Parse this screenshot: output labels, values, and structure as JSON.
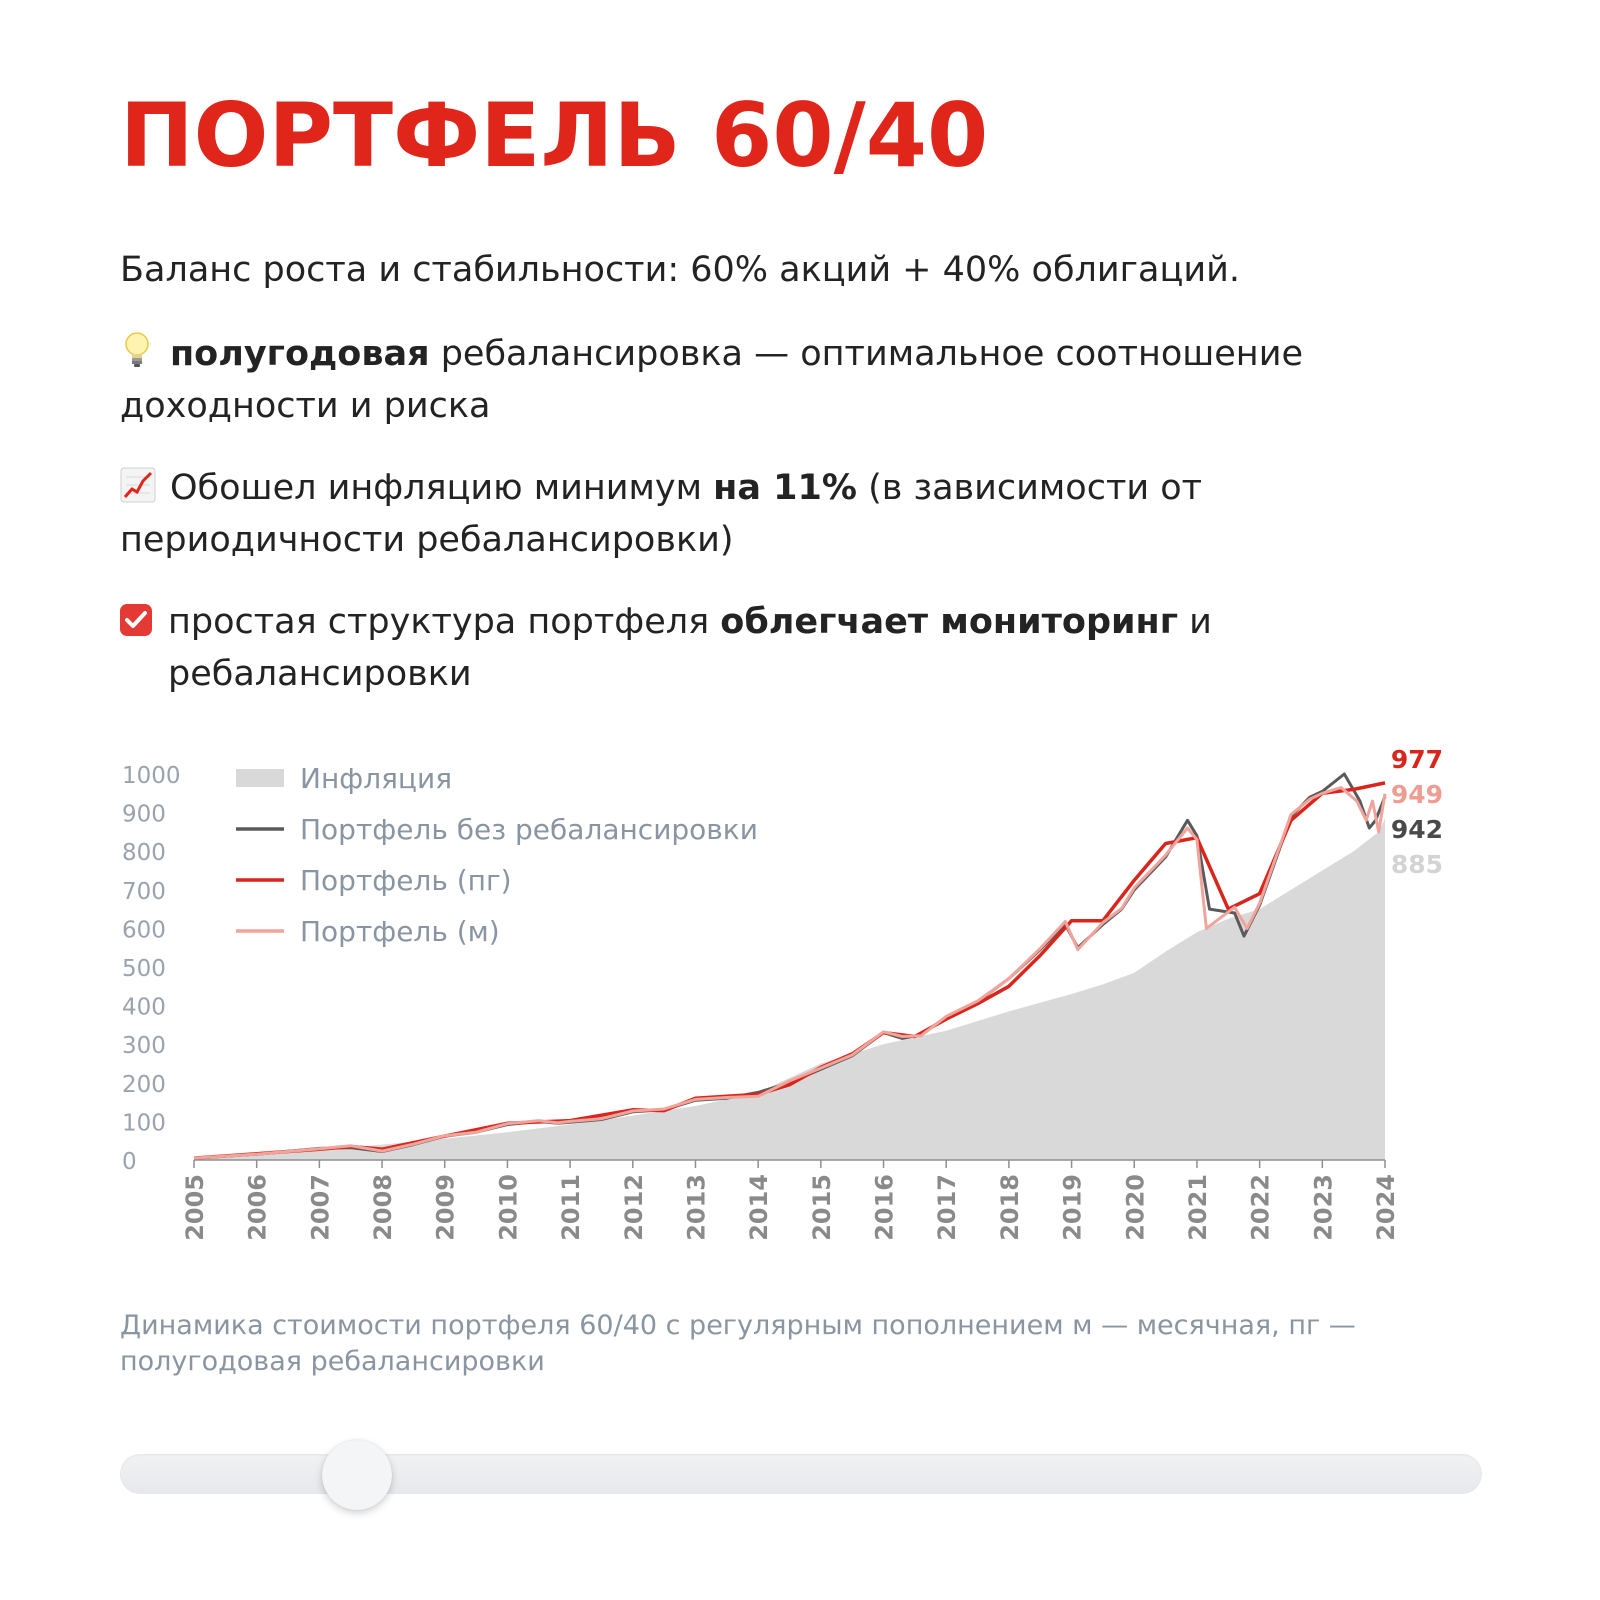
{
  "header": {
    "title": "ПОРТФЕЛЬ 60/40"
  },
  "intro": {
    "text": "Баланс роста и стабильности: 60% акций + 40% облигаций."
  },
  "bullets": [
    {
      "icon": "lightbulb-icon",
      "bold": "полугодовая",
      "rest": " ребалансировка — оптимальное соотношение доходности и риска"
    },
    {
      "icon": "chart-increasing-icon",
      "pre": "Обошел инфляцию минимум ",
      "bold": "на 11%",
      "rest": " (в зависимости от периодичности ребалансировки)"
    },
    {
      "icon": "checkbox-icon",
      "pre": "простая структура портфеля ",
      "bold": "облегчает мониторинг",
      "rest": " и ребалансировки"
    }
  ],
  "chart_data": {
    "type": "line",
    "y_ticks": [
      "0",
      "100",
      "200",
      "300",
      "400",
      "500",
      "600",
      "700",
      "800",
      "900",
      "1000"
    ],
    "x_ticks": [
      "2005",
      "2006",
      "2007",
      "2008",
      "2009",
      "2010",
      "2011",
      "2012",
      "2013",
      "2014",
      "2015",
      "2016",
      "2017",
      "2018",
      "2019",
      "2020",
      "2021",
      "2022",
      "2023",
      "2024"
    ],
    "ylim": [
      0,
      1000
    ],
    "xlim": [
      2005,
      2024
    ],
    "grid": false,
    "legend_position": "top-left",
    "series": [
      {
        "name": "Инфляция",
        "kind": "area",
        "color": "#d9d9d9",
        "end_label": "885",
        "points": [
          [
            2005,
            5
          ],
          [
            2006,
            15
          ],
          [
            2007,
            26
          ],
          [
            2008,
            40
          ],
          [
            2009,
            55
          ],
          [
            2010,
            72
          ],
          [
            2011,
            92
          ],
          [
            2012,
            115
          ],
          [
            2013,
            140
          ],
          [
            2014,
            175
          ],
          [
            2015,
            250
          ],
          [
            2016,
            300
          ],
          [
            2017,
            335
          ],
          [
            2018,
            385
          ],
          [
            2019,
            430
          ],
          [
            2019.5,
            455
          ],
          [
            2020,
            485
          ],
          [
            2020.5,
            540
          ],
          [
            2021,
            590
          ],
          [
            2021.5,
            625
          ],
          [
            2022,
            650
          ],
          [
            2022.5,
            700
          ],
          [
            2023,
            750
          ],
          [
            2023.5,
            800
          ],
          [
            2023.9,
            850
          ],
          [
            2024,
            885
          ]
        ]
      },
      {
        "name": "Портфель без ребалансировки",
        "kind": "line",
        "color": "#5a5a5a",
        "end_label": "942",
        "points": [
          [
            2005,
            5
          ],
          [
            2006,
            15
          ],
          [
            2007,
            30
          ],
          [
            2007.5,
            32
          ],
          [
            2008,
            22
          ],
          [
            2008.5,
            40
          ],
          [
            2009,
            62
          ],
          [
            2009.5,
            72
          ],
          [
            2010,
            92
          ],
          [
            2010.5,
            100
          ],
          [
            2010.8,
            95
          ],
          [
            2011,
            98
          ],
          [
            2011.5,
            105
          ],
          [
            2012,
            125
          ],
          [
            2012.5,
            130
          ],
          [
            2013,
            155
          ],
          [
            2013.5,
            160
          ],
          [
            2014,
            175
          ],
          [
            2014.5,
            200
          ],
          [
            2015,
            235
          ],
          [
            2015.5,
            270
          ],
          [
            2016,
            330
          ],
          [
            2016.3,
            315
          ],
          [
            2016.6,
            325
          ],
          [
            2017,
            370
          ],
          [
            2017.5,
            410
          ],
          [
            2018,
            470
          ],
          [
            2018.5,
            545
          ],
          [
            2018.9,
            610
          ],
          [
            2019.1,
            550
          ],
          [
            2019.5,
            610
          ],
          [
            2019.8,
            650
          ],
          [
            2020,
            700
          ],
          [
            2020.5,
            785
          ],
          [
            2020.85,
            880
          ],
          [
            2021.0,
            840
          ],
          [
            2021.2,
            650
          ],
          [
            2021.6,
            640
          ],
          [
            2021.75,
            580
          ],
          [
            2022,
            660
          ],
          [
            2022.5,
            890
          ],
          [
            2022.8,
            940
          ],
          [
            2023.0,
            955
          ],
          [
            2023.35,
            1000
          ],
          [
            2023.6,
            930
          ],
          [
            2023.75,
            860
          ],
          [
            2023.85,
            880
          ],
          [
            2024,
            942
          ]
        ]
      },
      {
        "name": "Портфель (пг)",
        "kind": "line",
        "color": "#d9251b",
        "end_label": "977",
        "points": [
          [
            2005,
            5
          ],
          [
            2006,
            16
          ],
          [
            2007,
            28
          ],
          [
            2007.5,
            35
          ],
          [
            2008,
            28
          ],
          [
            2009,
            62
          ],
          [
            2010,
            95
          ],
          [
            2011,
            102
          ],
          [
            2012,
            130
          ],
          [
            2012.5,
            128
          ],
          [
            2013,
            160
          ],
          [
            2013.5,
            165
          ],
          [
            2014,
            170
          ],
          [
            2014.5,
            195
          ],
          [
            2015,
            240
          ],
          [
            2015.5,
            275
          ],
          [
            2016,
            330
          ],
          [
            2016.5,
            320
          ],
          [
            2017,
            365
          ],
          [
            2017.5,
            405
          ],
          [
            2018,
            450
          ],
          [
            2018.5,
            530
          ],
          [
            2019,
            620
          ],
          [
            2019.5,
            620
          ],
          [
            2020,
            725
          ],
          [
            2020.5,
            820
          ],
          [
            2021,
            835
          ],
          [
            2021.5,
            650
          ],
          [
            2022,
            690
          ],
          [
            2022.5,
            880
          ],
          [
            2023,
            950
          ],
          [
            2023.5,
            960
          ],
          [
            2024,
            977
          ]
        ]
      },
      {
        "name": "Портфель (м)",
        "kind": "line",
        "color": "#f0a49c",
        "end_label": "949",
        "points": [
          [
            2005,
            5
          ],
          [
            2006,
            15
          ],
          [
            2007,
            29
          ],
          [
            2007.5,
            37
          ],
          [
            2008,
            23
          ],
          [
            2008.5,
            41
          ],
          [
            2009,
            63
          ],
          [
            2009.5,
            72
          ],
          [
            2010,
            94
          ],
          [
            2010.5,
            102
          ],
          [
            2010.8,
            96
          ],
          [
            2011,
            100
          ],
          [
            2011.5,
            107
          ],
          [
            2012,
            127
          ],
          [
            2012.5,
            132
          ],
          [
            2013,
            157
          ],
          [
            2013.5,
            162
          ],
          [
            2014,
            165
          ],
          [
            2014.5,
            205
          ],
          [
            2015,
            238
          ],
          [
            2015.5,
            272
          ],
          [
            2016,
            332
          ],
          [
            2016.3,
            320
          ],
          [
            2016.6,
            322
          ],
          [
            2017,
            372
          ],
          [
            2017.5,
            412
          ],
          [
            2018,
            470
          ],
          [
            2018.5,
            548
          ],
          [
            2018.9,
            618
          ],
          [
            2019.1,
            545
          ],
          [
            2019.5,
            615
          ],
          [
            2019.8,
            652
          ],
          [
            2020,
            705
          ],
          [
            2020.5,
            790
          ],
          [
            2020.85,
            860
          ],
          [
            2021.0,
            830
          ],
          [
            2021.15,
            600
          ],
          [
            2021.6,
            655
          ],
          [
            2021.8,
            600
          ],
          [
            2022,
            665
          ],
          [
            2022.5,
            895
          ],
          [
            2022.8,
            935
          ],
          [
            2023.0,
            950
          ],
          [
            2023.3,
            965
          ],
          [
            2023.55,
            930
          ],
          [
            2023.7,
            880
          ],
          [
            2023.8,
            930
          ],
          [
            2023.9,
            850
          ],
          [
            2024,
            949
          ]
        ]
      }
    ]
  },
  "caption": {
    "text": "Динамика стоимости портфеля 60/40 с регулярным пополнением м — месячная, пг — полугодовая ребалансировки"
  },
  "slider": {
    "value": 0.15
  }
}
